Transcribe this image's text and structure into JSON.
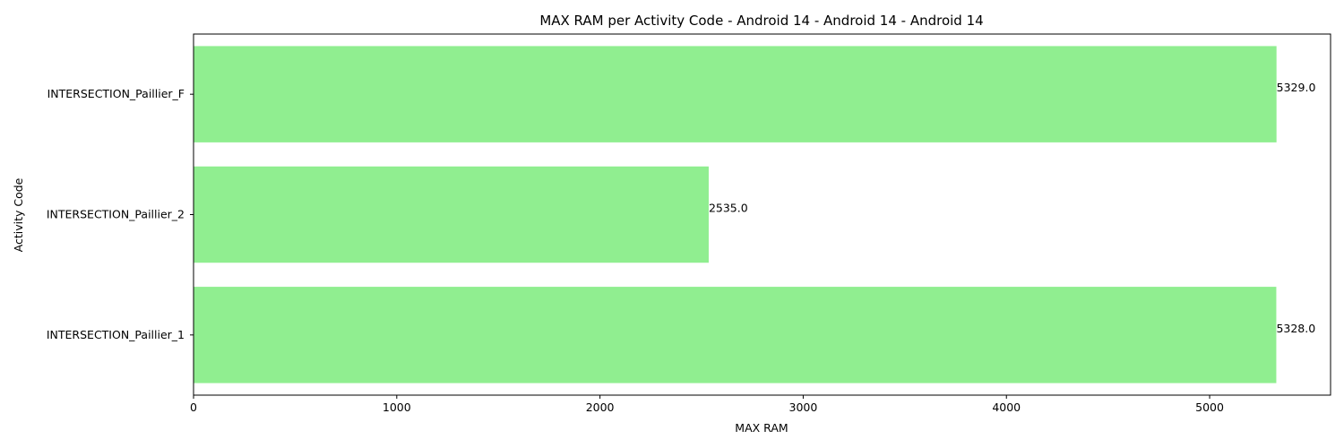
{
  "chart_data": {
    "type": "bar",
    "orientation": "horizontal",
    "title": "MAX RAM per Activity Code - Android 14 - Android 14 - Android 14",
    "xlabel": "MAX RAM",
    "ylabel": "Activity Code",
    "categories": [
      "INTERSECTION_Paillier_1",
      "INTERSECTION_Paillier_2",
      "INTERSECTION_Paillier_F"
    ],
    "values": [
      5328.0,
      2535.0,
      5329.0
    ],
    "value_labels": [
      "5328.0",
      "2535.0",
      "5329.0"
    ],
    "xlim": [
      0,
      5595
    ],
    "xticks": [
      0,
      1000,
      2000,
      3000,
      4000,
      5000
    ],
    "xtick_labels": [
      "0",
      "1000",
      "2000",
      "3000",
      "4000",
      "5000"
    ],
    "bar_color": "#90ee90",
    "grid": false
  }
}
